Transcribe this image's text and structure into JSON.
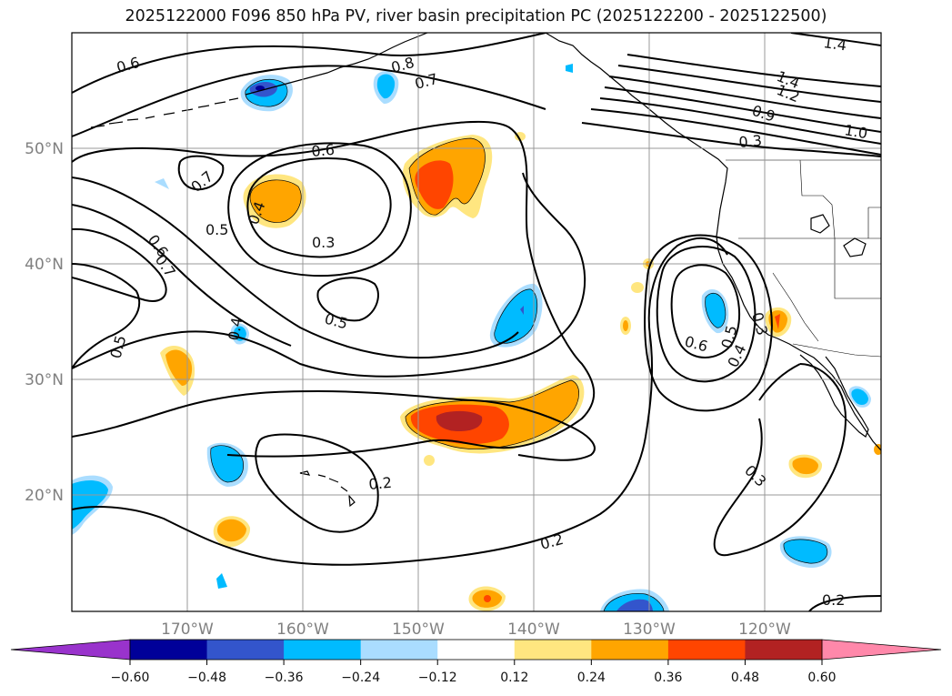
{
  "title": "2025122000 F096 850 hPa PV, river basin precipitation PC (2025122200 - 2025122500)",
  "map": {
    "lon_labels": [
      "170°W",
      "160°W",
      "150°W",
      "140°W",
      "130°W",
      "120°W"
    ],
    "lat_labels": [
      "50°N",
      "40°N",
      "30°N",
      "20°N"
    ],
    "contour_labels": [
      {
        "text": "0.6"
      },
      {
        "text": "0.8"
      },
      {
        "text": "0.7"
      },
      {
        "text": "1.4"
      },
      {
        "text": "1.4"
      },
      {
        "text": "1.2"
      },
      {
        "text": "0.9"
      },
      {
        "text": "1.0"
      },
      {
        "text": "0.3"
      },
      {
        "text": "0.6"
      },
      {
        "text": "0.7"
      },
      {
        "text": "0.4"
      },
      {
        "text": "0.5"
      },
      {
        "text": "0.3"
      },
      {
        "text": "0.6"
      },
      {
        "text": "0.7"
      },
      {
        "text": "0.5"
      },
      {
        "text": "0.4"
      },
      {
        "text": "0.5"
      },
      {
        "text": "0.6"
      },
      {
        "text": "0.5"
      },
      {
        "text": "0.3"
      },
      {
        "text": "0.4"
      },
      {
        "text": "0.3"
      },
      {
        "text": "0.2"
      },
      {
        "text": "0.2"
      },
      {
        "text": "0.2"
      }
    ]
  },
  "colorbar": {
    "ticks": [
      "−0.60",
      "−0.48",
      "−0.36",
      "−0.24",
      "−0.12",
      "0.12",
      "0.24",
      "0.36",
      "0.48",
      "0.60"
    ],
    "colors": [
      "#9933cc",
      "#000099",
      "#3355cc",
      "#00bbff",
      "#aaddff",
      "#ffffff",
      "#ffe680",
      "#ffa500",
      "#ff4500",
      "#b22222",
      "#ff88aa"
    ]
  },
  "icons": {
    "cbar_left": "triangle-left-extension",
    "cbar_right": "triangle-right-extension"
  }
}
